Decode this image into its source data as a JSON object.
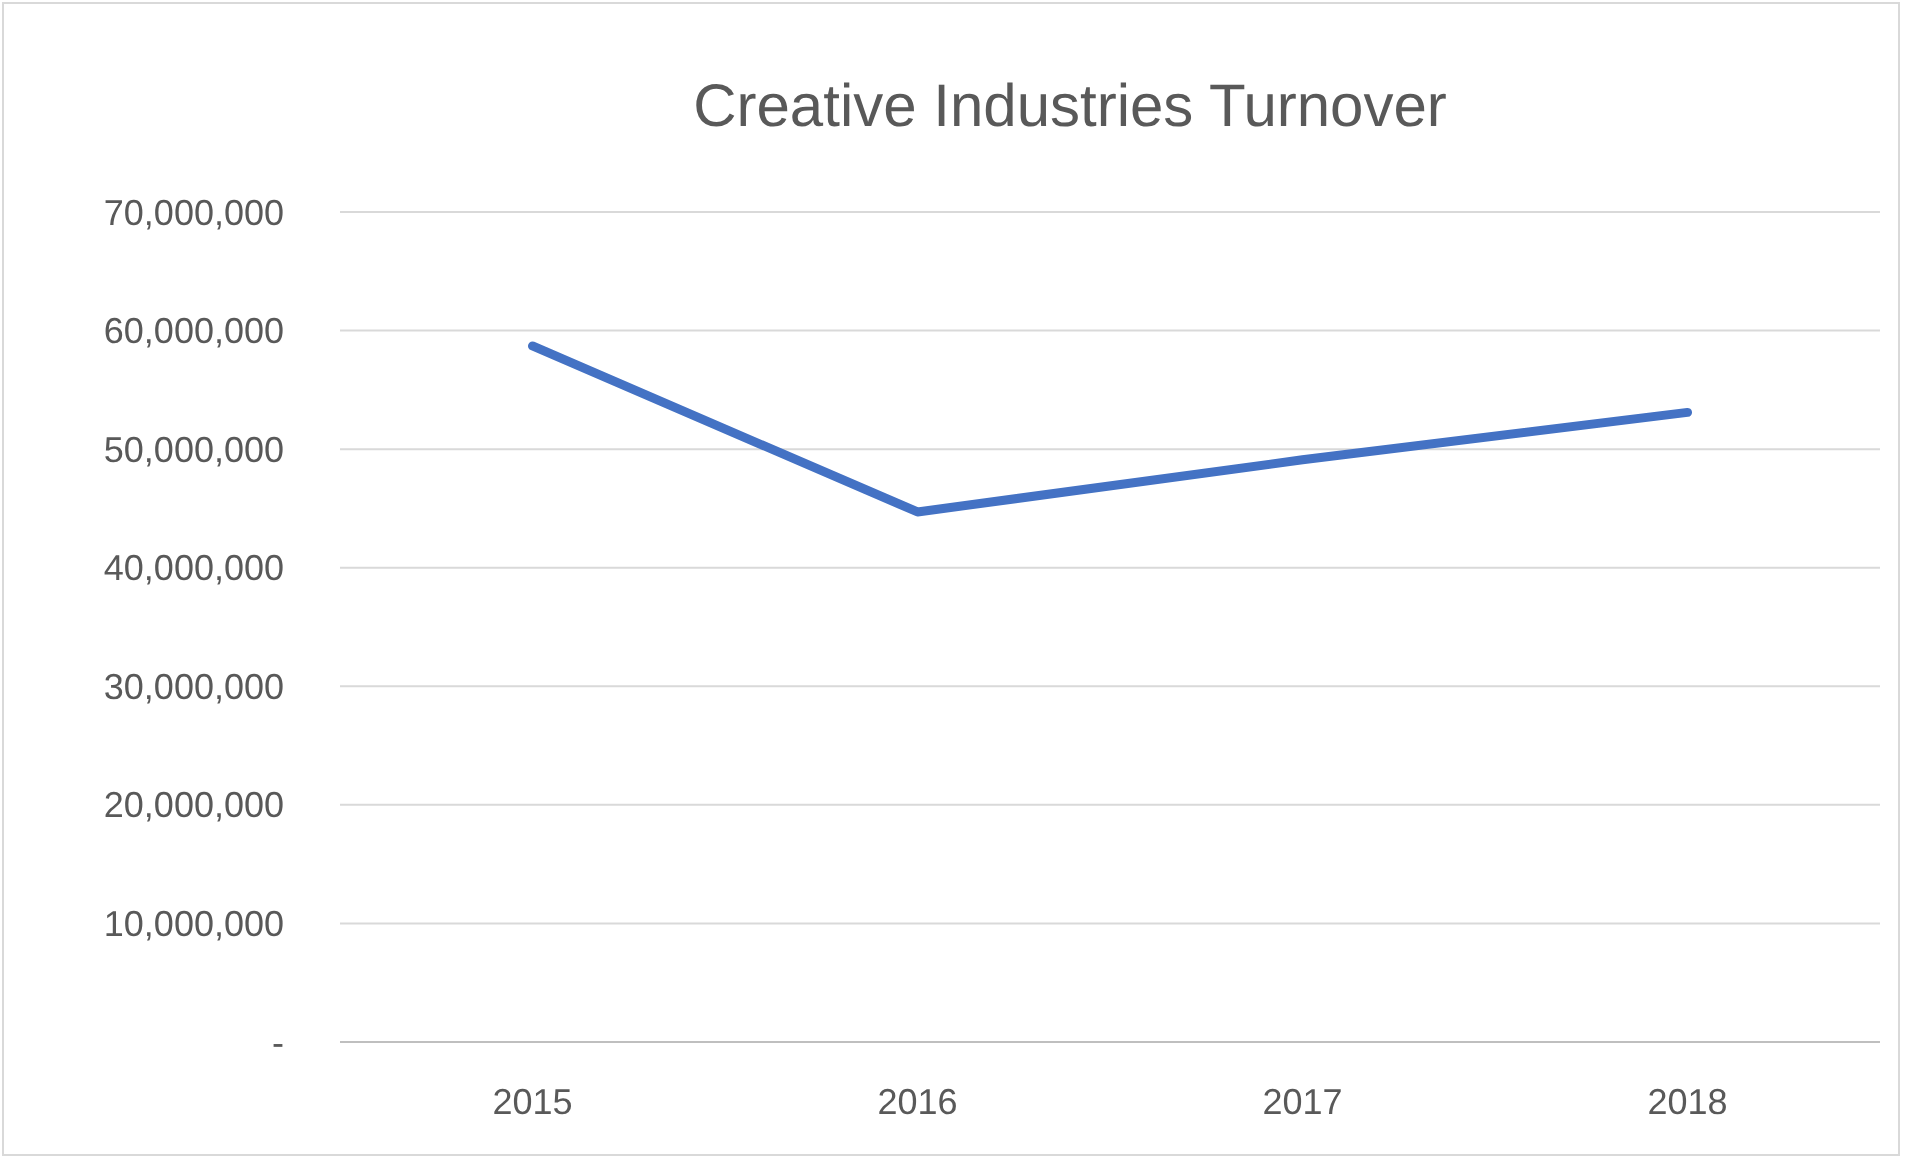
{
  "chart_data": {
    "type": "line",
    "title": "Creative Industries Turnover",
    "categories": [
      "2015",
      "2016",
      "2017",
      "2018"
    ],
    "series": [
      {
        "color": "#4472c4",
        "values": [
          58700000,
          44700000,
          49100000,
          53100000
        ]
      }
    ],
    "ylim": [
      0,
      70000000
    ],
    "yticks": [
      {
        "value": 0,
        "label": "-"
      },
      {
        "value": 10000000,
        "label": "10,000,000"
      },
      {
        "value": 20000000,
        "label": "20,000,000"
      },
      {
        "value": 30000000,
        "label": "30,000,000"
      },
      {
        "value": 40000000,
        "label": "40,000,000"
      },
      {
        "value": 50000000,
        "label": "50,000,000"
      },
      {
        "value": 60000000,
        "label": "60,000,000"
      },
      {
        "value": 70000000,
        "label": "70,000,000"
      }
    ],
    "grid": "y"
  }
}
